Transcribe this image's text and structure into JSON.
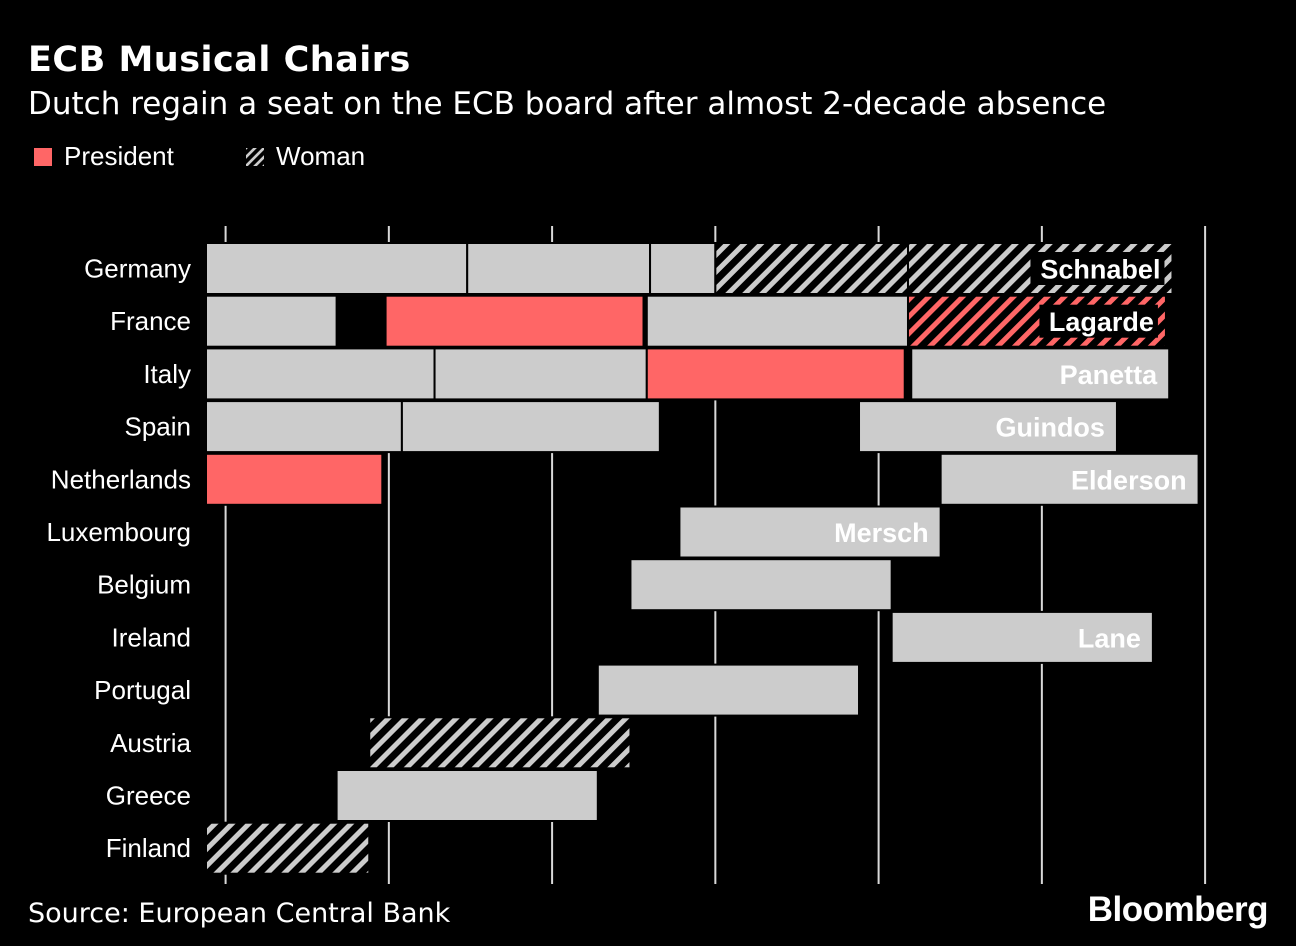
{
  "title": "ECB Musical Chairs",
  "subtitle": "Dutch regain a seat on the ECB board after almost 2-decade absence",
  "legend": [
    {
      "label": "President",
      "style": "president",
      "color": "#ff6666"
    },
    {
      "label": "Woman",
      "style": "woman",
      "color": "#cccccc"
    }
  ],
  "source": "Source: European Central Bank",
  "brand": "Bloomberg",
  "colors": {
    "background": "#000000",
    "bar": "#cccccc",
    "president": "#ff6666",
    "grid": "#d9d9d9",
    "text": "#ffffff",
    "label_box": "#000000"
  },
  "chart_data": {
    "type": "timeline",
    "title": "ECB Musical Chairs",
    "subtitle": "Dutch regain a seat on the ECB board after almost 2-decade absence",
    "xlim": [
      1998.4,
      2028
    ],
    "grid_x": [
      1999,
      2004,
      2009,
      2014,
      2019,
      2024,
      2029
    ],
    "grid": true,
    "categories": [
      "Germany",
      "France",
      "Italy",
      "Spain",
      "Netherlands",
      "Luxembourg",
      "Belgium",
      "Ireland",
      "Portugal",
      "Austria",
      "Greece",
      "Finland"
    ],
    "segments": [
      {
        "country": "Germany",
        "start": 1998.4,
        "end": 2006.4,
        "style": "plain"
      },
      {
        "country": "Germany",
        "start": 2006.4,
        "end": 2012.0,
        "style": "plain"
      },
      {
        "country": "Germany",
        "start": 2012.0,
        "end": 2014.0,
        "style": "plain"
      },
      {
        "country": "Germany",
        "start": 2014.0,
        "end": 2019.9,
        "style": "woman"
      },
      {
        "country": "Germany",
        "start": 2019.9,
        "end": 2028.0,
        "style": "woman",
        "label": "Schnabel"
      },
      {
        "country": "France",
        "start": 1998.4,
        "end": 2002.4,
        "style": "plain"
      },
      {
        "country": "France",
        "start": 2003.9,
        "end": 2011.8,
        "style": "president"
      },
      {
        "country": "France",
        "start": 2011.9,
        "end": 2019.9,
        "style": "plain"
      },
      {
        "country": "France",
        "start": 2019.9,
        "end": 2027.8,
        "style": "president-woman",
        "label": "Lagarde"
      },
      {
        "country": "Italy",
        "start": 1998.4,
        "end": 2005.4,
        "style": "plain"
      },
      {
        "country": "Italy",
        "start": 2005.4,
        "end": 2011.9,
        "style": "plain"
      },
      {
        "country": "Italy",
        "start": 2011.9,
        "end": 2019.8,
        "style": "president"
      },
      {
        "country": "Italy",
        "start": 2020.0,
        "end": 2027.9,
        "style": "plain",
        "label": "Panetta"
      },
      {
        "country": "Spain",
        "start": 1998.4,
        "end": 2004.4,
        "style": "plain"
      },
      {
        "country": "Spain",
        "start": 2004.4,
        "end": 2012.3,
        "style": "plain"
      },
      {
        "country": "Spain",
        "start": 2018.4,
        "end": 2026.3,
        "style": "plain",
        "label": "Guindos"
      },
      {
        "country": "Netherlands",
        "start": 1998.4,
        "end": 2003.8,
        "style": "president"
      },
      {
        "country": "Netherlands",
        "start": 2020.9,
        "end": 2028.8,
        "style": "plain",
        "label": "Elderson"
      },
      {
        "country": "Luxembourg",
        "start": 2012.9,
        "end": 2020.9,
        "style": "plain",
        "label": "Mersch"
      },
      {
        "country": "Belgium",
        "start": 2011.4,
        "end": 2019.4,
        "style": "plain"
      },
      {
        "country": "Ireland",
        "start": 2019.4,
        "end": 2027.4,
        "style": "plain",
        "label": "Lane"
      },
      {
        "country": "Portugal",
        "start": 2010.4,
        "end": 2018.4,
        "style": "plain"
      },
      {
        "country": "Austria",
        "start": 2003.4,
        "end": 2011.4,
        "style": "woman"
      },
      {
        "country": "Greece",
        "start": 2002.4,
        "end": 2010.4,
        "style": "plain"
      },
      {
        "country": "Finland",
        "start": 1998.4,
        "end": 2003.4,
        "style": "woman"
      }
    ]
  }
}
